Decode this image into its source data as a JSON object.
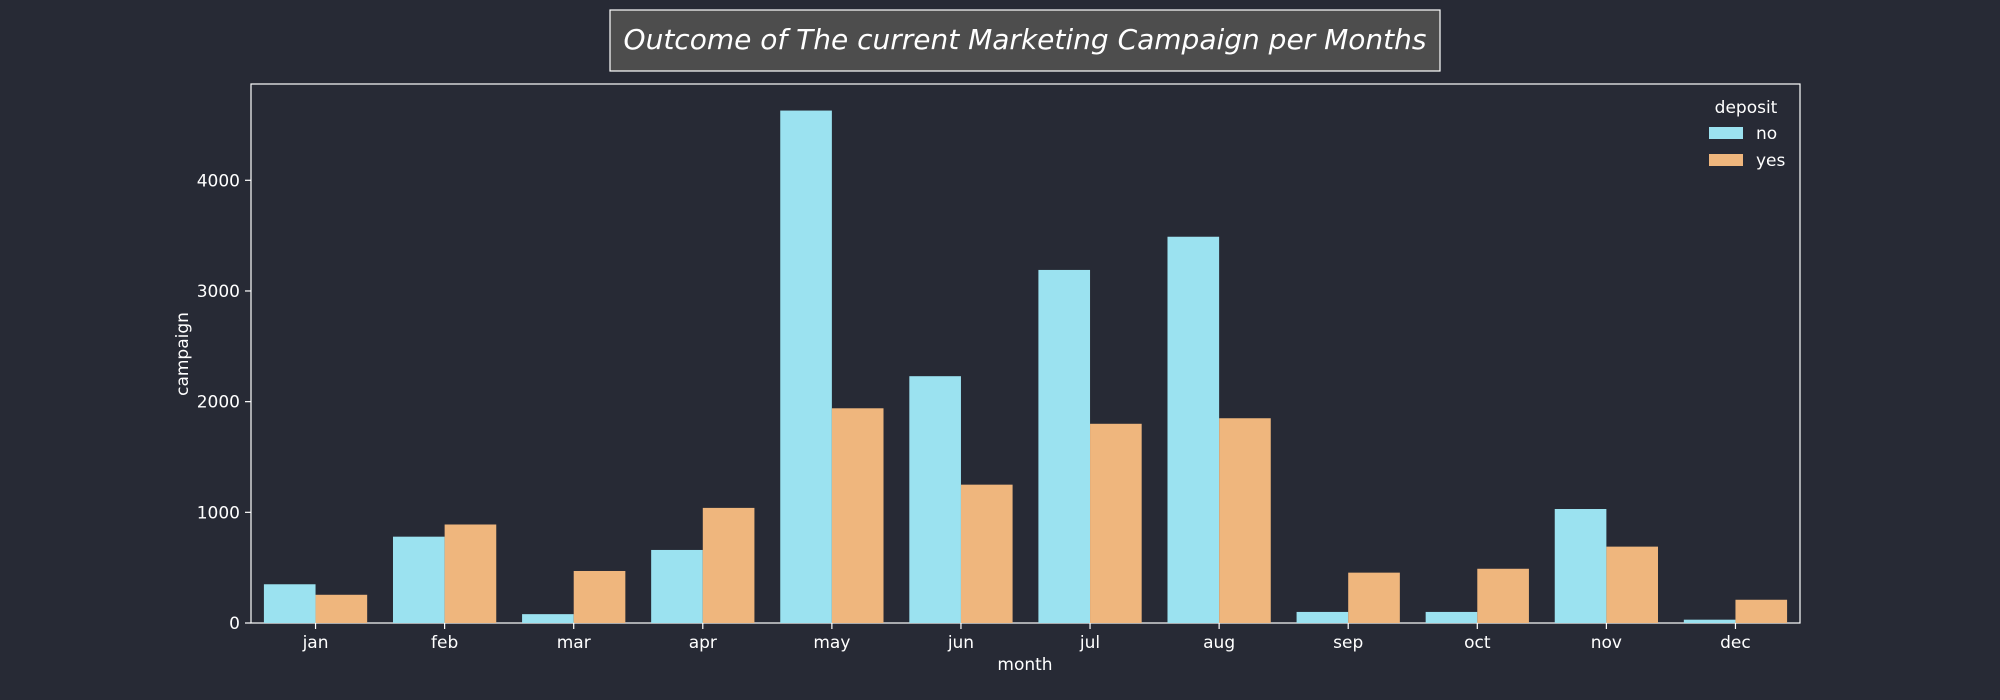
{
  "chart_data": {
    "type": "bar",
    "title": "Outcome of The current Marketing Campaign per Months",
    "xlabel": "month",
    "ylabel": "campaign",
    "categories": [
      "jan",
      "feb",
      "mar",
      "apr",
      "may",
      "jun",
      "jul",
      "aug",
      "sep",
      "oct",
      "nov",
      "dec"
    ],
    "yticks": [
      0,
      1000,
      2000,
      3000,
      4000
    ],
    "ylim": [
      0,
      4870
    ],
    "grid": false,
    "legend": {
      "title": "deposit",
      "placement": "top-right"
    },
    "series": [
      {
        "name": "no",
        "color": "#9be2f0",
        "values": [
          350,
          780,
          80,
          660,
          4630,
          2230,
          3190,
          3490,
          100,
          100,
          1030,
          30
        ]
      },
      {
        "name": "yes",
        "color": "#efb67d",
        "values": [
          255,
          890,
          470,
          1040,
          1940,
          1250,
          1800,
          1850,
          455,
          490,
          690,
          210
        ]
      }
    ]
  },
  "colors": {
    "background": "#272a35",
    "title_box": "#4d4d4d",
    "frame": "#ffffff",
    "text": "#ffffff"
  }
}
